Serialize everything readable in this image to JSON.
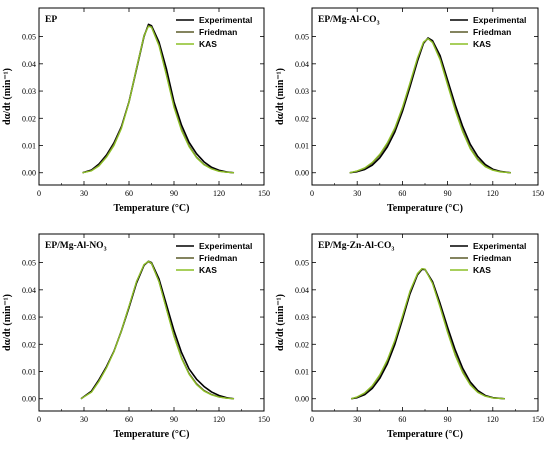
{
  "chart_data": [
    {
      "type": "line",
      "title": "EP",
      "xlabel": "Temperature (°C)",
      "ylabel": "dα/dt (min⁻¹)",
      "xlim": [
        0,
        150
      ],
      "ylim": [
        -0.0045,
        0.0605
      ],
      "xticks": [
        0,
        30,
        60,
        90,
        120,
        150
      ],
      "yticks": [
        0.0,
        0.01,
        0.02,
        0.03,
        0.04,
        0.05
      ],
      "xtick_labels": [
        "0",
        "30",
        "60",
        "90",
        "120",
        "150"
      ],
      "ytick_labels": [
        "0.00",
        "0.01",
        "0.02",
        "0.03",
        "0.04",
        "0.05"
      ],
      "legend_position": "top-right",
      "series": [
        {
          "name": "Experimental",
          "color": "#000000",
          "x": [
            29,
            35,
            40,
            45,
            50,
            55,
            60,
            65,
            70,
            73,
            75,
            80,
            85,
            90,
            95,
            100,
            105,
            110,
            115,
            120,
            125,
            130
          ],
          "y": [
            0.0,
            0.001,
            0.0032,
            0.0065,
            0.011,
            0.017,
            0.026,
            0.038,
            0.05,
            0.0545,
            0.054,
            0.048,
            0.038,
            0.026,
            0.0175,
            0.0112,
            0.007,
            0.004,
            0.002,
            0.0009,
            0.0003,
            0.0
          ]
        },
        {
          "name": "Friedman",
          "color": "#5c5c2a",
          "x": [
            29,
            35,
            40,
            45,
            50,
            55,
            60,
            65,
            70,
            73,
            75,
            80,
            85,
            90,
            95,
            100,
            105,
            110,
            115,
            120,
            125,
            130
          ],
          "y": [
            0.0,
            0.0008,
            0.0028,
            0.006,
            0.0105,
            0.0168,
            0.0262,
            0.0385,
            0.0505,
            0.054,
            0.0536,
            0.047,
            0.036,
            0.0245,
            0.016,
            0.01,
            0.0058,
            0.0031,
            0.0015,
            0.0006,
            0.0002,
            0.0
          ]
        },
        {
          "name": "KAS",
          "color": "#8cbf26",
          "x": [
            29,
            35,
            40,
            45,
            50,
            55,
            60,
            65,
            70,
            73,
            75,
            80,
            85,
            90,
            95,
            100,
            105,
            110,
            115,
            120,
            125,
            130
          ],
          "y": [
            0.0,
            0.0007,
            0.0025,
            0.0057,
            0.01,
            0.0163,
            0.0258,
            0.0382,
            0.0502,
            0.0538,
            0.0534,
            0.0466,
            0.0356,
            0.024,
            0.0155,
            0.0096,
            0.0055,
            0.0029,
            0.0014,
            0.0005,
            0.0002,
            0.0
          ]
        }
      ]
    },
    {
      "type": "line",
      "title": "EP/Mg-Al-CO3",
      "xlabel": "Temperature (°C)",
      "ylabel": "dα/dt (min⁻¹)",
      "xlim": [
        0,
        150
      ],
      "ylim": [
        -0.0045,
        0.0605
      ],
      "xticks": [
        0,
        30,
        60,
        90,
        120,
        150
      ],
      "yticks": [
        0.0,
        0.01,
        0.02,
        0.03,
        0.04,
        0.05
      ],
      "xtick_labels": [
        "0",
        "30",
        "60",
        "90",
        "120",
        "150"
      ],
      "ytick_labels": [
        "0.00",
        "0.01",
        "0.02",
        "0.03",
        "0.04",
        "0.05"
      ],
      "legend_position": "top-right",
      "series": [
        {
          "name": "Experimental",
          "color": "#000000",
          "x": [
            25,
            30,
            35,
            40,
            45,
            50,
            55,
            60,
            65,
            70,
            74,
            77,
            80,
            85,
            90,
            95,
            100,
            105,
            110,
            115,
            120,
            125,
            132
          ],
          "y": [
            0.0,
            0.0004,
            0.0012,
            0.0028,
            0.0055,
            0.0095,
            0.015,
            0.0225,
            0.0315,
            0.041,
            0.0475,
            0.0495,
            0.0485,
            0.043,
            0.034,
            0.025,
            0.017,
            0.0105,
            0.006,
            0.003,
            0.0013,
            0.0005,
            0.0
          ]
        },
        {
          "name": "Friedman",
          "color": "#5c5c2a",
          "x": [
            25,
            30,
            35,
            40,
            45,
            50,
            55,
            60,
            65,
            70,
            74,
            77,
            80,
            85,
            90,
            95,
            100,
            105,
            110,
            115,
            120,
            125,
            132
          ],
          "y": [
            0.0,
            0.0006,
            0.0016,
            0.0035,
            0.0064,
            0.0105,
            0.016,
            0.0235,
            0.0325,
            0.0418,
            0.0478,
            0.0492,
            0.048,
            0.042,
            0.0328,
            0.0236,
            0.0155,
            0.0092,
            0.005,
            0.0024,
            0.001,
            0.0004,
            0.0
          ]
        },
        {
          "name": "KAS",
          "color": "#8cbf26",
          "x": [
            25,
            30,
            35,
            40,
            45,
            50,
            55,
            60,
            65,
            70,
            74,
            77,
            80,
            85,
            90,
            95,
            100,
            105,
            110,
            115,
            120,
            125,
            132
          ],
          "y": [
            0.0,
            0.0007,
            0.0018,
            0.0038,
            0.0068,
            0.011,
            0.0165,
            0.024,
            0.033,
            0.0422,
            0.048,
            0.0493,
            0.0478,
            0.0415,
            0.0322,
            0.023,
            0.015,
            0.0088,
            0.0047,
            0.0022,
            0.0009,
            0.0003,
            0.0
          ]
        }
      ]
    },
    {
      "type": "line",
      "title": "EP/Mg-Al-NO3",
      "xlabel": "Temperature (°C)",
      "ylabel": "dα/dt (min⁻¹)",
      "xlim": [
        0,
        150
      ],
      "ylim": [
        -0.0045,
        0.0605
      ],
      "xticks": [
        0,
        30,
        60,
        90,
        120,
        150
      ],
      "yticks": [
        0.0,
        0.01,
        0.02,
        0.03,
        0.04,
        0.05
      ],
      "xtick_labels": [
        "0",
        "30",
        "60",
        "90",
        "120",
        "150"
      ],
      "ytick_labels": [
        "0.00",
        "0.01",
        "0.02",
        "0.03",
        "0.04",
        "0.05"
      ],
      "legend_position": "top-right",
      "series": [
        {
          "name": "Experimental",
          "color": "#000000",
          "x": [
            28,
            35,
            40,
            45,
            50,
            55,
            60,
            65,
            70,
            73,
            75,
            80,
            85,
            90,
            95,
            100,
            105,
            110,
            115,
            120,
            125,
            130
          ],
          "y": [
            0.0,
            0.0028,
            0.007,
            0.0118,
            0.0175,
            0.025,
            0.0335,
            0.0425,
            0.049,
            0.0505,
            0.05,
            0.044,
            0.0345,
            0.025,
            0.017,
            0.011,
            0.0072,
            0.0045,
            0.0025,
            0.0012,
            0.0004,
            0.0
          ]
        },
        {
          "name": "Friedman",
          "color": "#5c5c2a",
          "x": [
            28,
            35,
            40,
            45,
            50,
            55,
            60,
            65,
            70,
            73,
            75,
            80,
            85,
            90,
            95,
            100,
            105,
            110,
            115,
            120,
            125,
            130
          ],
          "y": [
            0.0,
            0.0025,
            0.0066,
            0.0115,
            0.0175,
            0.0252,
            0.034,
            0.043,
            0.0492,
            0.0503,
            0.0496,
            0.043,
            0.033,
            0.0232,
            0.0152,
            0.0094,
            0.0056,
            0.0031,
            0.0016,
            0.0007,
            0.0002,
            0.0
          ]
        },
        {
          "name": "KAS",
          "color": "#8cbf26",
          "x": [
            28,
            35,
            40,
            45,
            50,
            55,
            60,
            65,
            70,
            73,
            75,
            80,
            85,
            90,
            95,
            100,
            105,
            110,
            115,
            120,
            125,
            130
          ],
          "y": [
            0.0,
            0.0024,
            0.0064,
            0.0113,
            0.0173,
            0.025,
            0.034,
            0.043,
            0.0493,
            0.0505,
            0.0498,
            0.043,
            0.0328,
            0.0228,
            0.0148,
            0.009,
            0.0052,
            0.0028,
            0.0014,
            0.0006,
            0.0002,
            0.0
          ]
        }
      ]
    },
    {
      "type": "line",
      "title": "EP/Mg-Zn-Al-CO3",
      "xlabel": "Temperature (°C)",
      "ylabel": "dα/dt (min⁻¹)",
      "xlim": [
        0,
        150
      ],
      "ylim": [
        -0.0045,
        0.0605
      ],
      "xticks": [
        0,
        30,
        60,
        90,
        120,
        150
      ],
      "yticks": [
        0.0,
        0.01,
        0.02,
        0.03,
        0.04,
        0.05
      ],
      "xtick_labels": [
        "0",
        "30",
        "60",
        "90",
        "120",
        "150"
      ],
      "ytick_labels": [
        "0.00",
        "0.01",
        "0.02",
        "0.03",
        "0.04",
        "0.05"
      ],
      "legend_position": "top-right",
      "series": [
        {
          "name": "Experimental",
          "color": "#000000",
          "x": [
            26,
            30,
            35,
            40,
            45,
            50,
            55,
            60,
            65,
            70,
            73,
            75,
            80,
            85,
            90,
            95,
            100,
            105,
            110,
            115,
            120,
            128
          ],
          "y": [
            0.0,
            0.0004,
            0.0015,
            0.0038,
            0.0075,
            0.0128,
            0.02,
            0.029,
            0.0385,
            0.0455,
            0.0475,
            0.0475,
            0.043,
            0.035,
            0.0262,
            0.018,
            0.0112,
            0.0062,
            0.003,
            0.0012,
            0.0004,
            0.0
          ]
        },
        {
          "name": "Friedman",
          "color": "#5c5c2a",
          "x": [
            26,
            30,
            35,
            40,
            45,
            50,
            55,
            60,
            65,
            70,
            73,
            75,
            80,
            85,
            90,
            95,
            100,
            105,
            110,
            115,
            120,
            128
          ],
          "y": [
            0.0,
            0.0006,
            0.002,
            0.0045,
            0.0085,
            0.014,
            0.0212,
            0.03,
            0.0392,
            0.0458,
            0.0477,
            0.0476,
            0.0425,
            0.034,
            0.0248,
            0.0165,
            0.01,
            0.0054,
            0.0025,
            0.001,
            0.0003,
            0.0
          ]
        },
        {
          "name": "KAS",
          "color": "#8cbf26",
          "x": [
            26,
            30,
            35,
            40,
            45,
            50,
            55,
            60,
            65,
            70,
            73,
            75,
            80,
            85,
            90,
            95,
            100,
            105,
            110,
            115,
            120,
            128
          ],
          "y": [
            0.0,
            0.0007,
            0.0022,
            0.0048,
            0.0088,
            0.0143,
            0.0215,
            0.0303,
            0.0395,
            0.046,
            0.0478,
            0.0476,
            0.0423,
            0.0336,
            0.0243,
            0.016,
            0.0096,
            0.0051,
            0.0023,
            0.0009,
            0.0003,
            0.0
          ]
        }
      ]
    }
  ]
}
